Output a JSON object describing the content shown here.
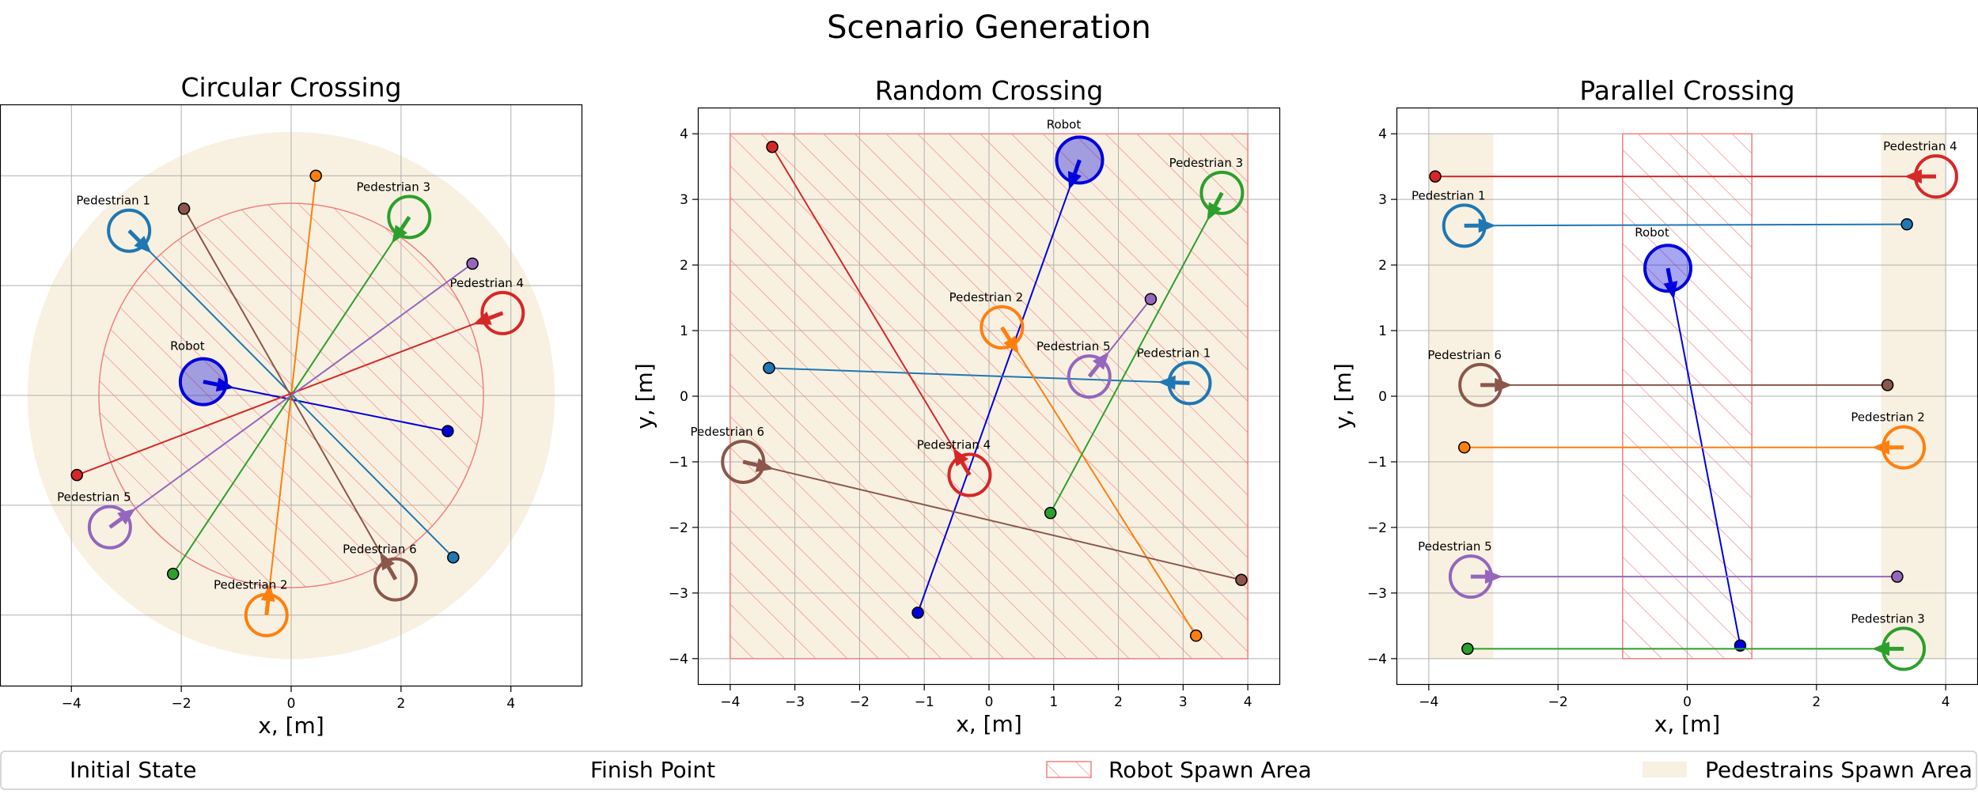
{
  "figure": {
    "title": "Scenario Generation"
  },
  "legend": {
    "placement": "bottom",
    "items": [
      {
        "key": "initial",
        "label": "Initial State"
      },
      {
        "key": "finish",
        "label": "Finish Point"
      },
      {
        "key": "robot_area",
        "label": "Robot Spawn Area"
      },
      {
        "key": "ped_area",
        "label": "Pedestrains Spawn Area"
      }
    ]
  },
  "colors": {
    "robot": "#0000dd",
    "pedestrian_1": "#1f77b4",
    "pedestrian_2": "#ff7f0e",
    "pedestrian_3": "#2ca02c",
    "pedestrian_4": "#d62728",
    "pedestrian_5": "#9467bd",
    "pedestrian_6": "#8c564b",
    "robot_spawn_area": "#f08080",
    "pedestrian_spawn_area": "#f8f1e1",
    "grid": "#b0b0b0"
  },
  "chart_data": [
    {
      "type": "scatter",
      "title": "Circular Crossing",
      "xlabel": "x, [m]",
      "ylabel": "",
      "xlim": [
        -5.3,
        5.3
      ],
      "ylim": [
        -5.3,
        5.3
      ],
      "xticks": [
        -4,
        -2,
        0,
        2,
        4
      ],
      "yticks": [
        -4,
        -2,
        0,
        2,
        4
      ],
      "show_y_ticklabels": false,
      "grid": true,
      "pedestrian_spawn_area": {
        "shape": "circle",
        "center": [
          0,
          0
        ],
        "radius": 4.8
      },
      "robot_spawn_area": {
        "shape": "circle",
        "center": [
          0,
          0
        ],
        "radius": 3.5
      },
      "agents": [
        {
          "name": "Robot",
          "start": [
            -1.6,
            0.25
          ],
          "goal": [
            2.85,
            -0.65
          ],
          "series": "robot"
        },
        {
          "name": "Pedestrian 1",
          "start": [
            -2.95,
            3.0
          ],
          "goal": [
            2.95,
            -2.95
          ],
          "series": "pedestrian_1"
        },
        {
          "name": "Pedestrian 2",
          "start": [
            -0.45,
            -4.0
          ],
          "goal": [
            0.45,
            4.0
          ],
          "series": "pedestrian_2"
        },
        {
          "name": "Pedestrian 3",
          "start": [
            2.15,
            3.25
          ],
          "goal": [
            -2.15,
            -3.25
          ],
          "series": "pedestrian_3"
        },
        {
          "name": "Pedestrian 4",
          "start": [
            3.85,
            1.5
          ],
          "goal": [
            -3.9,
            -1.45
          ],
          "series": "pedestrian_4"
        },
        {
          "name": "Pedestrian 5",
          "start": [
            -3.3,
            -2.4
          ],
          "goal": [
            3.3,
            2.4
          ],
          "series": "pedestrian_5"
        },
        {
          "name": "Pedestrian 6",
          "start": [
            1.9,
            -3.35
          ],
          "goal": [
            -1.95,
            3.4
          ],
          "series": "pedestrian_6"
        }
      ]
    },
    {
      "type": "scatter",
      "title": "Random Crossing",
      "xlabel": "x, [m]",
      "ylabel": "y, [m]",
      "xlim": [
        -4.5,
        4.5
      ],
      "ylim": [
        -4.4,
        4.4
      ],
      "xticks": [
        -4,
        -3,
        -2,
        -1,
        0,
        1,
        2,
        3,
        4
      ],
      "yticks": [
        -4,
        -3,
        -2,
        -1,
        0,
        1,
        2,
        3,
        4
      ],
      "show_y_ticklabels": true,
      "grid": true,
      "pedestrian_spawn_area": {
        "shape": "rect",
        "x": [
          -4,
          4
        ],
        "y": [
          -4,
          4
        ]
      },
      "robot_spawn_area": {
        "shape": "rect",
        "x": [
          -4,
          4
        ],
        "y": [
          -4,
          4
        ]
      },
      "agents": [
        {
          "name": "Robot",
          "start": [
            1.4,
            3.6
          ],
          "goal": [
            -1.1,
            -3.3
          ],
          "series": "robot"
        },
        {
          "name": "Pedestrian 1",
          "start": [
            3.1,
            0.2
          ],
          "goal": [
            -3.4,
            0.43
          ],
          "series": "pedestrian_1"
        },
        {
          "name": "Pedestrian 2",
          "start": [
            0.2,
            1.05
          ],
          "goal": [
            3.2,
            -3.65
          ],
          "series": "pedestrian_2"
        },
        {
          "name": "Pedestrian 3",
          "start": [
            3.6,
            3.1
          ],
          "goal": [
            0.95,
            -1.78
          ],
          "series": "pedestrian_3"
        },
        {
          "name": "Pedestrian 4",
          "start": [
            -0.3,
            -1.2
          ],
          "goal": [
            -3.35,
            3.8
          ],
          "series": "pedestrian_4"
        },
        {
          "name": "Pedestrian 5",
          "start": [
            1.55,
            0.3
          ],
          "goal": [
            2.5,
            1.48
          ],
          "series": "pedestrian_5"
        },
        {
          "name": "Pedestrian 6",
          "start": [
            -3.8,
            -1.0
          ],
          "goal": [
            3.9,
            -2.8
          ],
          "series": "pedestrian_6"
        }
      ]
    },
    {
      "type": "scatter",
      "title": "Parallel Crossing",
      "xlabel": "x, [m]",
      "ylabel": "y, [m]",
      "xlim": [
        -4.5,
        4.5
      ],
      "ylim": [
        -4.4,
        4.4
      ],
      "xticks": [
        -4,
        -2,
        0,
        2,
        4
      ],
      "yticks": [
        -4,
        -3,
        -2,
        -1,
        0,
        1,
        2,
        3,
        4
      ],
      "show_y_ticklabels": true,
      "grid": true,
      "pedestrian_spawn_area": {
        "shape": "rects",
        "rects": [
          {
            "x": [
              -4,
              -3
            ],
            "y": [
              -4,
              4
            ]
          },
          {
            "x": [
              3,
              4
            ],
            "y": [
              -4,
              4
            ]
          }
        ]
      },
      "robot_spawn_area": {
        "shape": "rect",
        "x": [
          -1,
          1
        ],
        "y": [
          -4,
          4
        ]
      },
      "agents": [
        {
          "name": "Robot",
          "start": [
            -0.3,
            1.95
          ],
          "goal": [
            0.82,
            -3.8
          ],
          "series": "robot"
        },
        {
          "name": "Pedestrian 1",
          "start": [
            -3.45,
            2.6
          ],
          "goal": [
            3.4,
            2.62
          ],
          "series": "pedestrian_1"
        },
        {
          "name": "Pedestrian 2",
          "start": [
            3.35,
            -0.78
          ],
          "goal": [
            -3.45,
            -0.78
          ],
          "series": "pedestrian_2"
        },
        {
          "name": "Pedestrian 3",
          "start": [
            3.35,
            -3.85
          ],
          "goal": [
            -3.4,
            -3.85
          ],
          "series": "pedestrian_3"
        },
        {
          "name": "Pedestrian 4",
          "start": [
            3.85,
            3.35
          ],
          "goal": [
            -3.9,
            3.35
          ],
          "series": "pedestrian_4"
        },
        {
          "name": "Pedestrian 5",
          "start": [
            -3.35,
            -2.75
          ],
          "goal": [
            3.25,
            -2.75
          ],
          "series": "pedestrian_5"
        },
        {
          "name": "Pedestrian 6",
          "start": [
            -3.2,
            0.17
          ],
          "goal": [
            3.1,
            0.17
          ],
          "series": "pedestrian_6"
        }
      ]
    }
  ]
}
